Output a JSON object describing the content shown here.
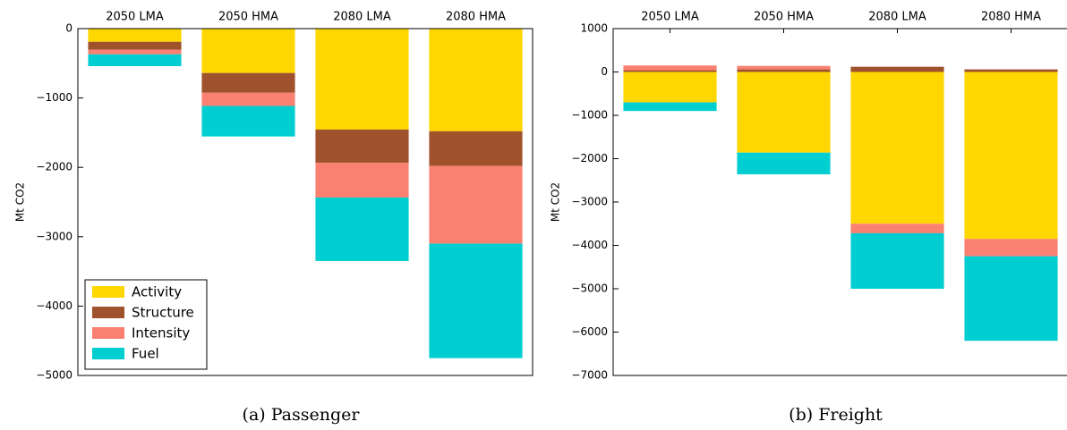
{
  "chart_data": [
    {
      "type": "bar",
      "stacked": true,
      "caption": "(a) Passenger",
      "ylabel": "Mt CO2",
      "categories": [
        "2050 LMA",
        "2050 HMA",
        "2080 LMA",
        "2080 HMA"
      ],
      "series": [
        {
          "name": "Activity",
          "color": "#ffd700",
          "values": [
            -190,
            -640,
            -1455,
            -1480
          ]
        },
        {
          "name": "Structure",
          "color": "#a0522d",
          "values": [
            -116,
            -285,
            -480,
            -500
          ]
        },
        {
          "name": "Intensity",
          "color": "#fa8072",
          "values": [
            -65,
            -190,
            -500,
            -1120
          ]
        },
        {
          "name": "Fuel",
          "color": "#00ced1",
          "values": [
            -170,
            -440,
            -915,
            -1650
          ]
        }
      ],
      "ylim": [
        -5000,
        0
      ],
      "yticks": [
        {
          "value": 0,
          "label": "0"
        },
        {
          "value": -1000,
          "label": "−1000"
        },
        {
          "value": -2000,
          "label": "−2000"
        },
        {
          "value": -3000,
          "label": "−3000"
        },
        {
          "value": -4000,
          "label": "−4000"
        },
        {
          "value": -5000,
          "label": "−5000"
        }
      ],
      "legend": "lower left"
    },
    {
      "type": "bar",
      "stacked": true,
      "caption": "(b) Freight",
      "ylabel": "Mt CO2",
      "categories": [
        "2050 LMA",
        "2050 HMA",
        "2080 LMA",
        "2080 HMA"
      ],
      "series": [
        {
          "color": "#ffd700",
          "values": [
            -700,
            -1860,
            -3500,
            -3850
          ]
        },
        {
          "color": "#a0522d",
          "values": [
            40,
            60,
            120,
            60
          ]
        },
        {
          "color": "#fa8072",
          "values": [
            110,
            80,
            -220,
            -400
          ]
        },
        {
          "color": "#00ced1",
          "values": [
            -200,
            -500,
            -1280,
            -1950
          ]
        }
      ],
      "ylim": [
        -7000,
        1000
      ],
      "yticks": [
        {
          "value": 1000,
          "label": "1000"
        },
        {
          "value": 0,
          "label": "0"
        },
        {
          "value": -1000,
          "label": "−1000"
        },
        {
          "value": -2000,
          "label": "−2000"
        },
        {
          "value": -3000,
          "label": "−3000"
        },
        {
          "value": -4000,
          "label": "−4000"
        },
        {
          "value": -5000,
          "label": "−5000"
        },
        {
          "value": -6000,
          "label": "−6000"
        },
        {
          "value": -7000,
          "label": "−7000"
        }
      ]
    }
  ]
}
